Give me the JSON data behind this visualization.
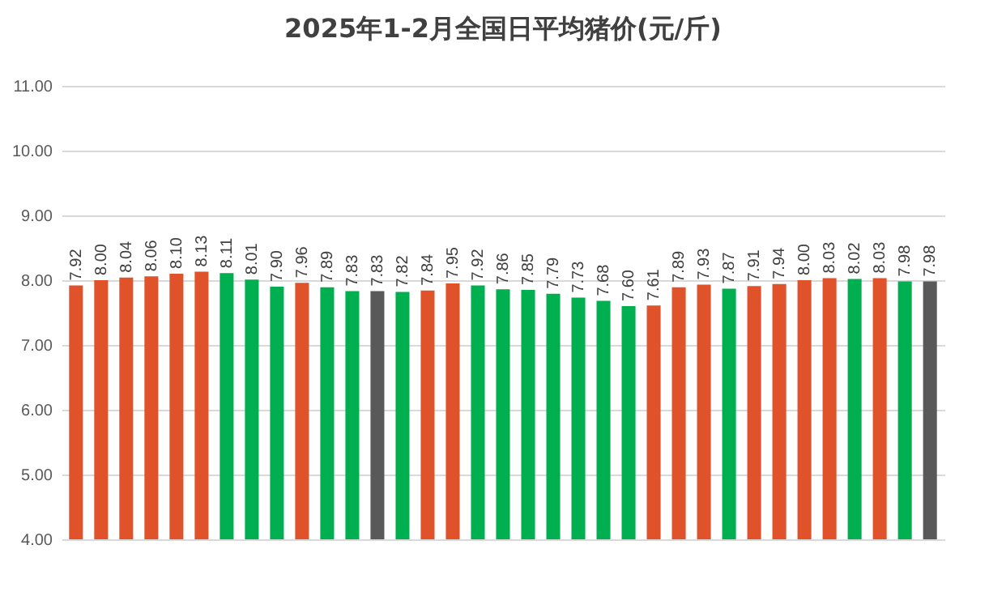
{
  "chart_data": {
    "type": "bar",
    "title": "2025年1-2月全国日平均猪价(元/斤)",
    "categories": [
      null,
      null,
      null,
      null,
      null,
      null,
      null,
      null,
      null,
      null,
      null,
      null,
      null,
      null,
      null,
      null,
      null,
      null,
      null,
      null,
      null,
      null,
      null,
      null,
      null,
      null,
      null,
      null,
      null,
      null,
      null,
      null,
      null,
      null,
      null
    ],
    "values": [
      7.92,
      8.0,
      8.04,
      8.06,
      8.1,
      8.13,
      8.11,
      8.01,
      7.9,
      7.96,
      7.89,
      7.83,
      7.83,
      7.82,
      7.84,
      7.95,
      7.92,
      7.86,
      7.85,
      7.79,
      7.73,
      7.68,
      7.6,
      7.61,
      7.89,
      7.93,
      7.87,
      7.91,
      7.94,
      8.0,
      8.03,
      8.02,
      8.03,
      7.98,
      7.98
    ],
    "value_labels": [
      "7.92",
      "8.00",
      "8.04",
      "8.06",
      "8.10",
      "8.13",
      "8.11",
      "8.01",
      "7.90",
      "7.96",
      "7.89",
      "7.83",
      "7.83",
      "7.82",
      "7.84",
      "7.95",
      "7.92",
      "7.86",
      "7.85",
      "7.79",
      "7.73",
      "7.68",
      "7.60",
      "7.61",
      "7.89",
      "7.93",
      "7.87",
      "7.91",
      "7.94",
      "8.00",
      "8.03",
      "8.02",
      "8.03",
      "7.98",
      "7.98"
    ],
    "colors": [
      "#e0522a",
      "#e0522a",
      "#e0522a",
      "#e0522a",
      "#e0522a",
      "#e0522a",
      "#00b050",
      "#00b050",
      "#00b050",
      "#e0522a",
      "#00b050",
      "#00b050",
      "#595959",
      "#00b050",
      "#e0522a",
      "#e0522a",
      "#00b050",
      "#00b050",
      "#00b050",
      "#00b050",
      "#00b050",
      "#00b050",
      "#00b050",
      "#e0522a",
      "#e0522a",
      "#e0522a",
      "#00b050",
      "#e0522a",
      "#e0522a",
      "#e0522a",
      "#e0522a",
      "#00b050",
      "#e0522a",
      "#00b050",
      "#595959"
    ],
    "ylim": [
      4,
      11
    ],
    "yticks": [
      {
        "value": 4,
        "label": "4.00"
      },
      {
        "value": 5,
        "label": "5.00"
      },
      {
        "value": 6,
        "label": "6.00"
      },
      {
        "value": 7,
        "label": "7.00"
      },
      {
        "value": 8,
        "label": "8.00"
      },
      {
        "value": 9,
        "label": "9.00"
      },
      {
        "value": 10,
        "label": "10.00"
      },
      {
        "value": 11,
        "label": "11.00"
      }
    ],
    "grid": "y"
  }
}
